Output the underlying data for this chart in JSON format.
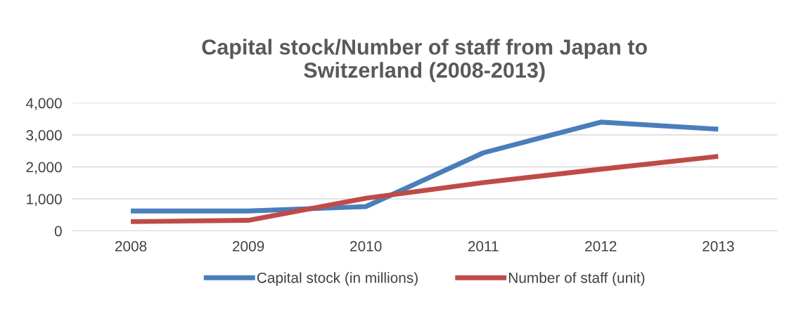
{
  "chart_data": {
    "type": "line",
    "title": "Capital stock/Number of staff from Japan to\nSwitzerland (2008-2013)",
    "categories": [
      "2008",
      "2009",
      "2010",
      "2011",
      "2012",
      "2013"
    ],
    "series": [
      {
        "name": "Capital stock (in millions)",
        "color": "#4a7ebb",
        "values": [
          620,
          620,
          760,
          2440,
          3400,
          3180
        ]
      },
      {
        "name": "Number of staff (unit)",
        "color": "#be4b48",
        "values": [
          290,
          330,
          1020,
          1510,
          1930,
          2330
        ]
      }
    ],
    "ylim": [
      0,
      4000
    ],
    "yticks": [
      {
        "value": 0,
        "label": "0"
      },
      {
        "value": 1000,
        "label": "1,000"
      },
      {
        "value": 2000,
        "label": "2,000"
      },
      {
        "value": 3000,
        "label": "3,000"
      },
      {
        "value": 4000,
        "label": "4,000"
      }
    ],
    "grid": "y",
    "legend": "bottom",
    "marker": "none",
    "line_style": "solid"
  }
}
